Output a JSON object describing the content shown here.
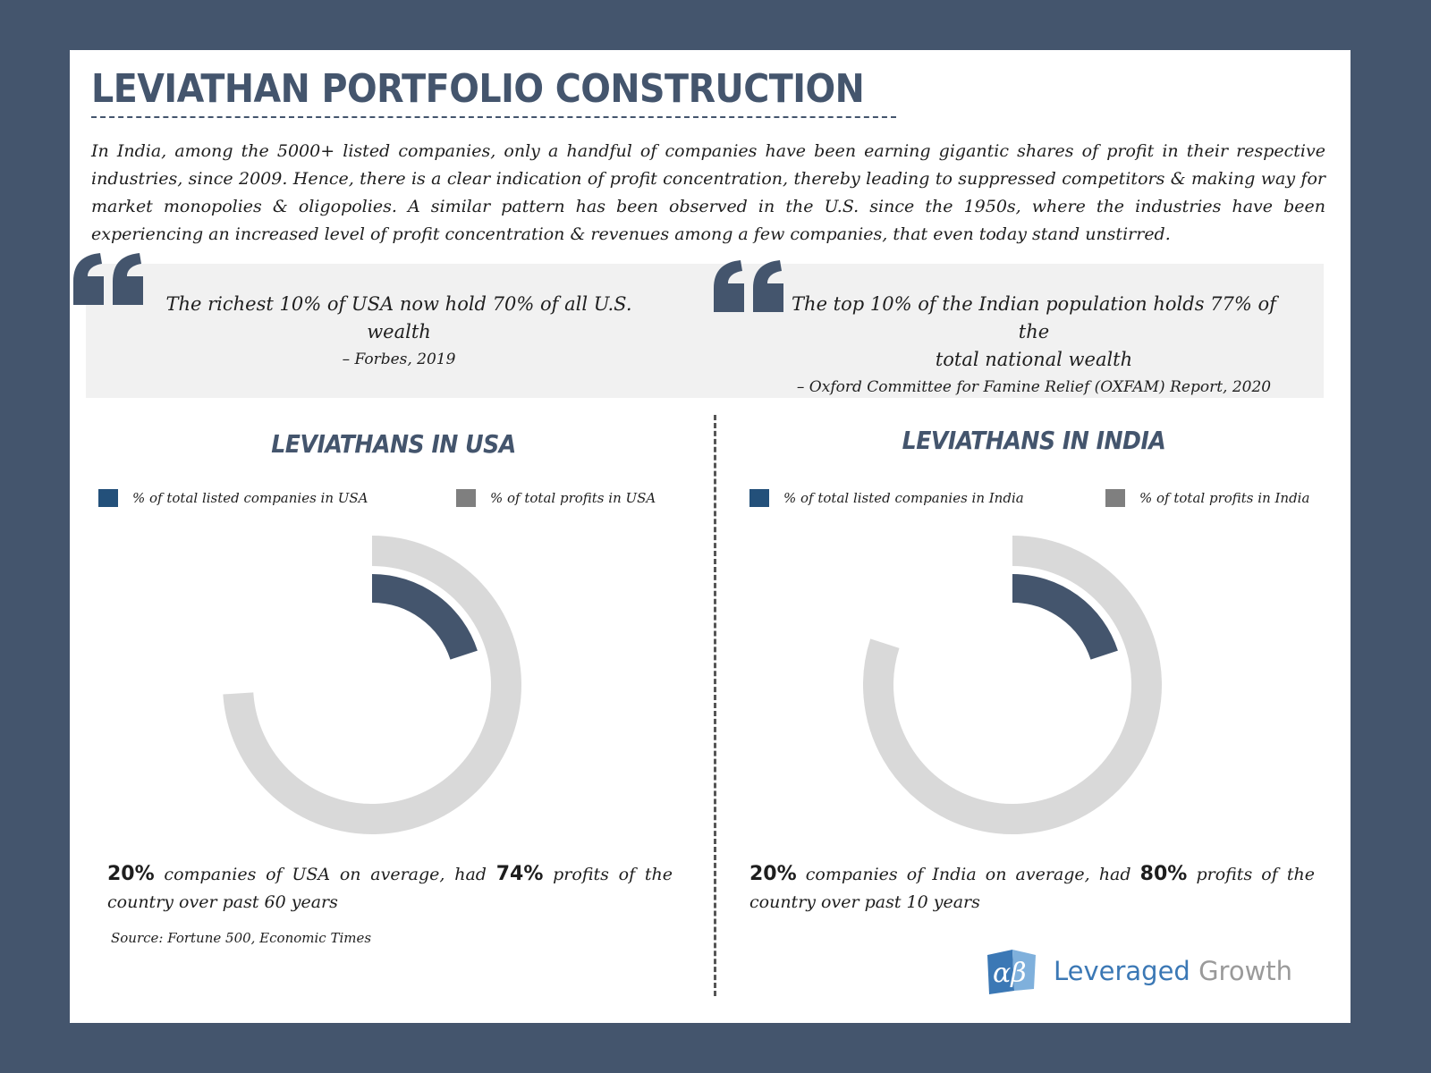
{
  "title": "LEVIATHAN PORTFOLIO CONSTRUCTION",
  "intro": "In India, among the 5000+ listed companies, only a handful of companies have been earning gigantic shares of profit in their respective industries, since 2009. Hence, there is a clear indication of profit concentration, thereby leading to suppressed competitors & making way for market monopolies & oligopolies. A similar pattern has been observed in the U.S. since the 1950s, where the industries have been experiencing an increased level of profit concentration & revenues among a few companies, that even today stand unstirred.",
  "quotes": [
    {
      "text": "The richest 10% of USA now hold 70% of all U.S. wealth",
      "source": "– Forbes, 2019"
    },
    {
      "text_line1": "The top 10% of the Indian population holds 77% of the",
      "text_line2": "total national wealth",
      "source": "– Oxford Committee for Famine Relief (OXFAM) Report, 2020"
    }
  ],
  "colors": {
    "frame": "#44556d",
    "series_companies": "#44556d",
    "series_profits": "#d9d9d9",
    "legend_companies": "#23507a",
    "legend_profits": "#7f7f7f",
    "logo_blue": "#3b78b5",
    "logo_gray": "#9a9a9a"
  },
  "chart_data": [
    {
      "type": "pie",
      "title": "LEVIATHANS IN USA",
      "variant": "concentric-ring",
      "series": [
        {
          "name": "% of total listed companies in USA",
          "value": 20
        },
        {
          "name": "% of total profits in USA",
          "value": 74
        }
      ],
      "stat": {
        "v1": "20%",
        "t1": " companies of USA on average, had ",
        "v2": "74%",
        "t2": " profits of the country over past 60 years"
      }
    },
    {
      "type": "pie",
      "title": "LEVIATHANS IN INDIA",
      "variant": "concentric-ring",
      "series": [
        {
          "name": "% of total listed companies in India",
          "value": 20
        },
        {
          "name": "% of total profits in India",
          "value": 80
        }
      ],
      "stat": {
        "v1": "20%",
        "t1": " companies of India on average, had ",
        "v2": "80%",
        "t2": " profits of the country over past 10 years"
      }
    }
  ],
  "source": "Source: Fortune 500, Economic Times",
  "logo": {
    "mark": "αβ",
    "word1": "Leveraged",
    "word2": " Growth"
  }
}
